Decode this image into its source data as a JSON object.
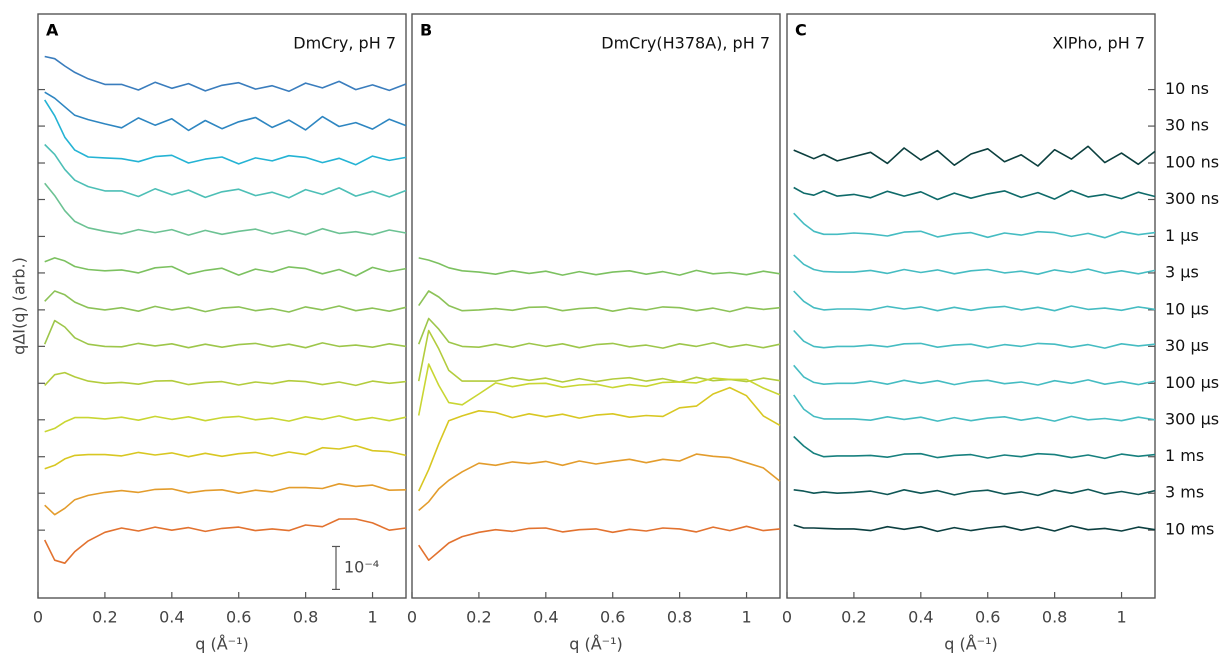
{
  "chart_data": [
    {
      "type": "line",
      "panel": "A",
      "title": "DmCry, pH 7",
      "xlabel": "q (Å⁻¹)",
      "ylabel": "qΔI(q) (arb.)",
      "x": [
        0.02,
        0.05,
        0.08,
        0.11,
        0.15,
        0.2,
        0.25,
        0.3,
        0.35,
        0.4,
        0.45,
        0.5,
        0.55,
        0.6,
        0.65,
        0.7,
        0.75,
        0.8,
        0.85,
        0.9,
        0.95,
        1.0,
        1.05,
        1.1
      ],
      "xlim": [
        0,
        1.1
      ],
      "xticks": [
        0,
        0.2,
        0.4,
        0.6,
        0.8,
        1
      ],
      "ylim": [
        0,
        13.6
      ],
      "yticks": [
        11.84,
        10.99,
        10.13,
        9.28,
        8.42,
        7.57,
        6.71,
        5.86,
        5.0,
        4.15,
        3.29,
        2.44,
        1.58
      ],
      "scale_bar": {
        "value": 1,
        "label": "10⁻⁴"
      },
      "series": [
        {
          "name": "10 ns",
          "color": "#3a7dbd",
          "values": [
            12.61,
            12.56,
            12.39,
            12.24,
            12.09,
            11.96,
            11.96,
            11.83,
            12.01,
            11.87,
            11.98,
            11.81,
            11.94,
            12.0,
            11.85,
            11.93,
            11.8,
            11.99,
            11.88,
            12.03,
            11.84,
            11.95,
            11.82,
            11.97
          ]
        },
        {
          "name": "30 ns",
          "color": "#2e86c1",
          "values": [
            11.78,
            11.64,
            11.44,
            11.24,
            11.14,
            11.04,
            10.95,
            11.18,
            11.01,
            11.16,
            10.89,
            11.12,
            10.93,
            11.09,
            11.19,
            10.96,
            11.13,
            10.9,
            11.21,
            10.98,
            11.07,
            10.92,
            11.15,
            11.0
          ]
        },
        {
          "name": "100 ns",
          "color": "#24b3d4",
          "values": [
            11.6,
            11.23,
            10.73,
            10.43,
            10.27,
            10.25,
            10.23,
            10.16,
            10.28,
            10.31,
            10.13,
            10.22,
            10.27,
            10.11,
            10.25,
            10.18,
            10.3,
            10.26,
            10.14,
            10.24,
            10.09,
            10.29,
            10.19,
            10.26
          ]
        },
        {
          "name": "300 ns",
          "color": "#4dbfb6",
          "values": [
            10.56,
            10.33,
            9.98,
            9.73,
            9.58,
            9.48,
            9.48,
            9.35,
            9.53,
            9.39,
            9.5,
            9.33,
            9.46,
            9.52,
            9.37,
            9.45,
            9.32,
            9.51,
            9.4,
            9.55,
            9.36,
            9.47,
            9.34,
            9.49
          ]
        },
        {
          "name": "1 µs",
          "color": "#6cc293",
          "values": [
            9.66,
            9.37,
            9.02,
            8.77,
            8.62,
            8.54,
            8.48,
            8.58,
            8.51,
            8.58,
            8.45,
            8.56,
            8.47,
            8.54,
            8.59,
            8.48,
            8.56,
            8.46,
            8.6,
            8.49,
            8.53,
            8.46,
            8.57,
            8.5
          ]
        },
        {
          "name": "3 µs",
          "color": "#7cc160",
          "values": [
            7.83,
            7.92,
            7.85,
            7.72,
            7.65,
            7.62,
            7.64,
            7.57,
            7.69,
            7.72,
            7.54,
            7.63,
            7.68,
            7.52,
            7.66,
            7.59,
            7.71,
            7.67,
            7.55,
            7.65,
            7.5,
            7.7,
            7.6,
            7.67
          ]
        },
        {
          "name": "10 µs",
          "color": "#8cc257",
          "values": [
            6.91,
            7.15,
            7.06,
            6.89,
            6.76,
            6.71,
            6.76,
            6.68,
            6.79,
            6.71,
            6.77,
            6.67,
            6.75,
            6.78,
            6.69,
            6.74,
            6.66,
            6.78,
            6.71,
            6.8,
            6.69,
            6.75,
            6.68,
            6.77
          ]
        },
        {
          "name": "30 µs",
          "color": "#9dc64a",
          "values": [
            5.91,
            6.46,
            6.31,
            6.06,
            5.91,
            5.86,
            5.85,
            5.93,
            5.87,
            5.92,
            5.83,
            5.91,
            5.84,
            5.9,
            5.93,
            5.85,
            5.91,
            5.83,
            5.94,
            5.86,
            5.89,
            5.84,
            5.92,
            5.86
          ]
        },
        {
          "name": "100 µs",
          "color": "#b3cc3d",
          "values": [
            4.95,
            5.2,
            5.25,
            5.15,
            5.05,
            5.0,
            5.02,
            4.98,
            5.05,
            5.06,
            4.97,
            5.02,
            5.04,
            4.96,
            5.03,
            4.99,
            5.06,
            5.04,
            4.97,
            5.03,
            4.95,
            5.05,
            5.0,
            5.04
          ]
        },
        {
          "name": "300 µs",
          "color": "#c9d633",
          "values": [
            3.87,
            3.95,
            4.1,
            4.2,
            4.2,
            4.17,
            4.21,
            4.14,
            4.23,
            4.16,
            4.22,
            4.13,
            4.2,
            4.23,
            4.15,
            4.19,
            4.12,
            4.22,
            4.16,
            4.24,
            4.14,
            4.2,
            4.13,
            4.21
          ]
        },
        {
          "name": "1 ms",
          "color": "#d8c722",
          "values": [
            3.01,
            3.09,
            3.24,
            3.32,
            3.34,
            3.34,
            3.31,
            3.39,
            3.33,
            3.38,
            3.29,
            3.37,
            3.3,
            3.36,
            3.39,
            3.31,
            3.4,
            3.34,
            3.5,
            3.47,
            3.55,
            3.43,
            3.41,
            3.32
          ]
        },
        {
          "name": "3 ms",
          "color": "#e39c2c",
          "values": [
            2.16,
            1.94,
            2.09,
            2.29,
            2.39,
            2.46,
            2.5,
            2.46,
            2.53,
            2.54,
            2.45,
            2.5,
            2.52,
            2.44,
            2.51,
            2.47,
            2.57,
            2.57,
            2.55,
            2.66,
            2.6,
            2.63,
            2.51,
            2.52
          ]
        },
        {
          "name": "10 ms",
          "color": "#e2722f",
          "values": [
            1.35,
            0.88,
            0.81,
            1.08,
            1.33,
            1.53,
            1.63,
            1.56,
            1.65,
            1.58,
            1.64,
            1.55,
            1.62,
            1.65,
            1.57,
            1.61,
            1.57,
            1.7,
            1.66,
            1.84,
            1.84,
            1.75,
            1.58,
            1.63
          ]
        }
      ]
    },
    {
      "type": "line",
      "panel": "B",
      "title": "DmCry(H378A), pH 7",
      "xlabel": "q (Å⁻¹)",
      "x": [
        0.02,
        0.05,
        0.08,
        0.11,
        0.15,
        0.2,
        0.25,
        0.3,
        0.35,
        0.4,
        0.45,
        0.5,
        0.55,
        0.6,
        0.65,
        0.7,
        0.75,
        0.8,
        0.85,
        0.9,
        0.95,
        1.0,
        1.05,
        1.1
      ],
      "xlim": [
        0,
        1.1
      ],
      "xticks": [
        0,
        0.2,
        0.4,
        0.6,
        0.8,
        1
      ],
      "ylim": [
        0,
        13.6
      ],
      "series": [
        {
          "color": "#7cc160",
          "values": [
            7.92,
            7.87,
            7.79,
            7.69,
            7.62,
            7.59,
            7.54,
            7.62,
            7.56,
            7.61,
            7.52,
            7.6,
            7.53,
            7.59,
            7.62,
            7.54,
            7.6,
            7.52,
            7.63,
            7.55,
            7.58,
            7.53,
            7.61,
            7.55
          ]
        },
        {
          "color": "#8cc257",
          "values": [
            6.81,
            7.15,
            7.01,
            6.81,
            6.69,
            6.71,
            6.74,
            6.7,
            6.77,
            6.78,
            6.69,
            6.74,
            6.76,
            6.68,
            6.75,
            6.71,
            6.78,
            6.76,
            6.69,
            6.75,
            6.67,
            6.77,
            6.72,
            6.76
          ]
        },
        {
          "color": "#9dc64a",
          "values": [
            5.91,
            6.51,
            6.26,
            5.96,
            5.86,
            5.84,
            5.91,
            5.84,
            5.93,
            5.86,
            5.92,
            5.83,
            5.9,
            5.93,
            5.85,
            5.89,
            5.82,
            5.92,
            5.86,
            5.94,
            5.84,
            5.9,
            5.83,
            5.91
          ]
        },
        {
          "color": "#b3cc3d",
          "values": [
            5.05,
            6.23,
            5.8,
            5.3,
            5.05,
            5.05,
            5.05,
            5.13,
            5.07,
            5.12,
            5.03,
            5.11,
            5.04,
            5.1,
            5.13,
            5.05,
            5.11,
            5.03,
            5.14,
            5.06,
            5.09,
            5.04,
            5.12,
            5.06
          ]
        },
        {
          "color": "#c9d633",
          "values": [
            4.25,
            5.45,
            4.95,
            4.55,
            4.5,
            4.75,
            5.01,
            4.92,
            4.99,
            5.0,
            4.91,
            4.96,
            4.98,
            4.9,
            4.97,
            4.93,
            5.02,
            5.03,
            5.01,
            5.12,
            5.09,
            5.09,
            4.89,
            4.73
          ]
        },
        {
          "color": "#d8c722",
          "values": [
            2.49,
            2.99,
            3.59,
            4.13,
            4.24,
            4.36,
            4.32,
            4.2,
            4.29,
            4.22,
            4.28,
            4.19,
            4.26,
            4.29,
            4.21,
            4.25,
            4.23,
            4.43,
            4.47,
            4.75,
            4.9,
            4.71,
            4.24,
            4.02
          ]
        },
        {
          "color": "#e39c2c",
          "values": [
            2.04,
            2.24,
            2.54,
            2.74,
            2.94,
            3.14,
            3.09,
            3.17,
            3.13,
            3.18,
            3.09,
            3.19,
            3.12,
            3.18,
            3.23,
            3.15,
            3.23,
            3.19,
            3.35,
            3.3,
            3.27,
            3.15,
            3.03,
            2.72
          ]
        },
        {
          "color": "#e2722f",
          "values": [
            1.23,
            0.88,
            1.08,
            1.28,
            1.43,
            1.53,
            1.59,
            1.55,
            1.62,
            1.63,
            1.54,
            1.59,
            1.61,
            1.53,
            1.6,
            1.56,
            1.63,
            1.61,
            1.54,
            1.65,
            1.57,
            1.67,
            1.57,
            1.61
          ]
        }
      ]
    },
    {
      "type": "line",
      "panel": "C",
      "title": "XlPho, pH 7",
      "xlabel": "q (Å⁻¹)",
      "x": [
        0.02,
        0.05,
        0.08,
        0.11,
        0.15,
        0.2,
        0.25,
        0.3,
        0.35,
        0.4,
        0.45,
        0.5,
        0.55,
        0.6,
        0.65,
        0.7,
        0.75,
        0.8,
        0.85,
        0.9,
        0.95,
        1.0,
        1.05,
        1.1
      ],
      "xlim": [
        0,
        1.1
      ],
      "xticks": [
        0,
        0.2,
        0.4,
        0.6,
        0.8,
        1
      ],
      "ylim": [
        0,
        13.6
      ],
      "yticks": [
        11.84,
        10.99,
        10.13,
        9.28,
        8.42,
        7.57,
        6.71,
        5.86,
        5.0,
        4.15,
        3.29,
        2.44,
        1.58
      ],
      "series": [
        {
          "color": "#0b3f3e",
          "values": [
            10.43,
            10.33,
            10.23,
            10.33,
            10.18,
            10.28,
            10.38,
            10.12,
            10.48,
            10.2,
            10.42,
            10.08,
            10.34,
            10.46,
            10.16,
            10.32,
            10.06,
            10.44,
            10.22,
            10.52,
            10.14,
            10.36,
            10.1,
            10.4
          ]
        },
        {
          "color": "#0e6a69",
          "values": [
            9.56,
            9.43,
            9.38,
            9.48,
            9.36,
            9.4,
            9.32,
            9.47,
            9.36,
            9.46,
            9.28,
            9.43,
            9.31,
            9.41,
            9.48,
            9.33,
            9.44,
            9.29,
            9.49,
            9.34,
            9.4,
            9.3,
            9.45,
            9.35
          ]
        },
        {
          "color": "#45bcc2",
          "values": [
            8.96,
            8.72,
            8.54,
            8.47,
            8.47,
            8.5,
            8.48,
            8.43,
            8.52,
            8.54,
            8.41,
            8.48,
            8.51,
            8.4,
            8.5,
            8.45,
            8.53,
            8.51,
            8.42,
            8.49,
            8.39,
            8.53,
            8.46,
            8.51
          ]
        },
        {
          "color": "#45bcc2",
          "values": [
            7.99,
            7.77,
            7.65,
            7.6,
            7.59,
            7.59,
            7.63,
            7.56,
            7.65,
            7.58,
            7.64,
            7.55,
            7.62,
            7.65,
            7.57,
            7.61,
            7.54,
            7.64,
            7.58,
            7.66,
            7.56,
            7.62,
            7.55,
            7.63
          ]
        },
        {
          "color": "#45bcc2",
          "values": [
            7.15,
            6.91,
            6.76,
            6.71,
            6.73,
            6.73,
            6.71,
            6.79,
            6.73,
            6.78,
            6.69,
            6.77,
            6.7,
            6.76,
            6.79,
            6.71,
            6.77,
            6.69,
            6.8,
            6.72,
            6.75,
            6.7,
            6.78,
            6.72
          ]
        },
        {
          "color": "#45bcc2",
          "values": [
            6.23,
            5.98,
            5.86,
            5.83,
            5.86,
            5.86,
            5.89,
            5.85,
            5.92,
            5.93,
            5.84,
            5.89,
            5.91,
            5.83,
            5.9,
            5.86,
            5.93,
            5.91,
            5.84,
            5.9,
            5.82,
            5.92,
            5.87,
            5.91
          ]
        },
        {
          "color": "#45bcc2",
          "values": [
            5.42,
            5.15,
            5.02,
            4.98,
            5.0,
            5.0,
            5.05,
            4.98,
            5.07,
            5.0,
            5.06,
            4.97,
            5.04,
            5.07,
            4.99,
            5.03,
            4.96,
            5.06,
            5.0,
            5.08,
            4.98,
            5.04,
            4.97,
            5.05
          ]
        },
        {
          "color": "#45bcc2",
          "values": [
            4.73,
            4.4,
            4.23,
            4.17,
            4.17,
            4.17,
            4.14,
            4.22,
            4.16,
            4.21,
            4.12,
            4.2,
            4.13,
            4.19,
            4.22,
            4.14,
            4.2,
            4.12,
            4.23,
            4.15,
            4.18,
            4.13,
            4.21,
            4.15
          ]
        },
        {
          "color": "#17807e",
          "values": [
            3.76,
            3.54,
            3.37,
            3.29,
            3.31,
            3.31,
            3.32,
            3.28,
            3.35,
            3.36,
            3.27,
            3.32,
            3.34,
            3.26,
            3.33,
            3.29,
            3.36,
            3.34,
            3.27,
            3.33,
            3.25,
            3.35,
            3.3,
            3.34
          ]
        },
        {
          "color": "#0f5756",
          "values": [
            2.52,
            2.49,
            2.44,
            2.47,
            2.44,
            2.46,
            2.49,
            2.41,
            2.52,
            2.44,
            2.5,
            2.4,
            2.48,
            2.51,
            2.42,
            2.47,
            2.39,
            2.51,
            2.44,
            2.53,
            2.42,
            2.48,
            2.41,
            2.5
          ]
        },
        {
          "color": "#0b3f40",
          "values": [
            1.7,
            1.63,
            1.63,
            1.62,
            1.61,
            1.61,
            1.57,
            1.66,
            1.6,
            1.66,
            1.55,
            1.64,
            1.57,
            1.63,
            1.67,
            1.58,
            1.65,
            1.56,
            1.68,
            1.59,
            1.62,
            1.56,
            1.65,
            1.59
          ]
        }
      ]
    }
  ]
}
